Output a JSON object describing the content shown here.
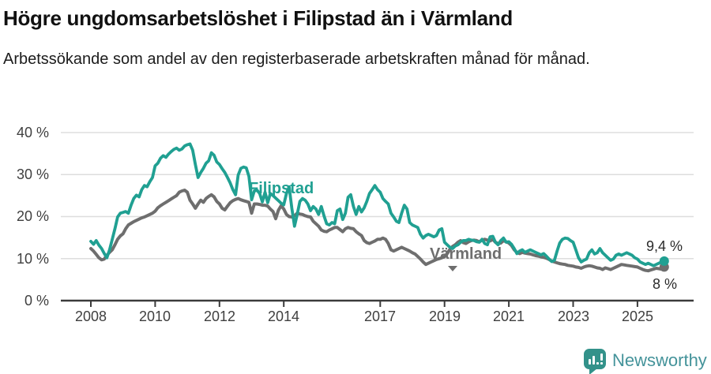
{
  "title": "Högre ungdomsarbetslöshet i Filipstad än i Värmland",
  "subtitle": "Arbetssökande som andel av den registerbaserade arbetskraften månad för månad.",
  "footer": {
    "brand": "Newsworthy"
  },
  "colors": {
    "filipstad": "#20a092",
    "varmland": "#6e6e6e",
    "gridline": "#dddddd",
    "axis": "#3b3b3b",
    "logo_bubble": "#33928a",
    "logo_text": "#44939a"
  },
  "chart_data": {
    "type": "line",
    "title": "Högre ungdomsarbetslöshet i Filipstad än i Värmland",
    "subtitle": "Arbetssökande som andel av den registerbaserade arbetskraften månad för månad.",
    "x_start": "2008-01",
    "x_end": "2025-11",
    "x_frequency": "monthly",
    "x_tick_labels": [
      "2008",
      "2010",
      "2012",
      "2014",
      "2017",
      "2019",
      "2021",
      "2023",
      "2025"
    ],
    "y_tick_labels": [
      "40 %",
      "30 %",
      "20 %",
      "10 %",
      "0 %"
    ],
    "ylim": [
      0,
      40
    ],
    "grid": "horizontal",
    "legend_position": "inline-labels",
    "series": [
      {
        "name": "Filipstad",
        "color": "#20a092",
        "end_label": "9,4 %",
        "end_value": 9.4,
        "values": [
          14.1,
          13.4,
          14.3,
          13.2,
          12.4,
          11.2,
          10.2,
          12.1,
          14.6,
          17.1,
          19.9,
          20.8,
          21.0,
          21.2,
          20.8,
          22.7,
          24.3,
          25.1,
          24.7,
          26.4,
          27.4,
          27.1,
          28.3,
          29.3,
          32.1,
          32.7,
          33.9,
          34.5,
          34.1,
          34.9,
          35.5,
          36.0,
          36.3,
          35.8,
          36.1,
          36.8,
          37.1,
          37.3,
          35.8,
          32.4,
          29.3,
          30.5,
          31.5,
          32.7,
          33.3,
          35.2,
          34.6,
          33.0,
          32.4,
          31.4,
          30.5,
          29.3,
          28.0,
          26.4,
          25.2,
          29.9,
          31.5,
          31.8,
          31.6,
          29.6,
          24.0,
          26.1,
          26.3,
          25.5,
          23.5,
          25.8,
          23.3,
          25.5,
          25.0,
          24.4,
          23.8,
          23.2,
          22.8,
          25.5,
          27.1,
          22.0,
          17.7,
          20.5,
          23.6,
          24.3,
          23.9,
          23.0,
          21.4,
          22.4,
          21.8,
          20.5,
          22.4,
          20.2,
          18.3,
          18.0,
          18.6,
          18.3,
          21.4,
          21.8,
          19.3,
          20.8,
          24.6,
          25.2,
          22.4,
          20.5,
          22.4,
          21.1,
          22.1,
          23.6,
          25.5,
          26.4,
          27.4,
          26.4,
          25.8,
          24.3,
          23.6,
          23.0,
          20.8,
          19.9,
          18.9,
          18.6,
          20.8,
          22.7,
          21.8,
          18.6,
          18.0,
          17.7,
          17.4,
          15.8,
          14.9,
          15.5,
          15.8,
          15.5,
          15.2,
          15.5,
          16.8,
          17.1,
          13.9,
          13.3,
          12.7,
          12.4,
          13.0,
          13.3,
          13.9,
          14.3,
          14.3,
          14.6,
          14.4,
          14.3,
          14.0,
          13.9,
          14.6,
          13.6,
          13.3,
          15.2,
          15.3,
          13.9,
          13.3,
          14.3,
          14.9,
          13.9,
          14.0,
          13.4,
          12.4,
          11.2,
          11.8,
          12.1,
          11.5,
          11.8,
          12.1,
          11.8,
          11.5,
          11.2,
          10.9,
          11.2,
          10.6,
          9.9,
          9.3,
          9.6,
          11.8,
          13.7,
          14.6,
          14.9,
          14.8,
          14.3,
          13.9,
          12.1,
          10.2,
          9.2,
          9.6,
          9.9,
          11.4,
          12.1,
          11.1,
          11.4,
          12.4,
          11.4,
          10.8,
          10.2,
          9.6,
          9.9,
          10.8,
          11.1,
          10.8,
          11.1,
          11.4,
          11.1,
          10.8,
          10.2,
          9.9,
          9.2,
          8.9,
          8.6,
          8.9,
          8.6,
          8.3,
          8.6,
          8.9,
          9.2,
          9.4
        ]
      },
      {
        "name": "Värmland",
        "color": "#6e6e6e",
        "end_label": "8 %",
        "end_value": 8.0,
        "values": [
          12.4,
          11.8,
          11.0,
          10.2,
          9.7,
          9.9,
          10.8,
          11.5,
          12.1,
          13.3,
          14.6,
          15.4,
          15.9,
          17.1,
          18.0,
          18.4,
          18.8,
          19.1,
          19.4,
          19.7,
          19.9,
          20.2,
          20.5,
          20.8,
          21.3,
          22.1,
          22.6,
          23.0,
          23.4,
          23.8,
          24.2,
          24.6,
          25.0,
          25.8,
          26.1,
          26.3,
          25.8,
          23.9,
          23.0,
          22.0,
          23.0,
          23.9,
          23.4,
          24.3,
          24.8,
          25.2,
          24.7,
          23.6,
          23.0,
          22.0,
          21.6,
          22.5,
          23.3,
          23.8,
          24.1,
          24.3,
          24.0,
          23.8,
          23.6,
          23.4,
          20.8,
          23.0,
          23.0,
          22.9,
          22.7,
          22.7,
          22.5,
          21.8,
          21.2,
          19.5,
          21.5,
          22.6,
          21.8,
          20.5,
          20.0,
          19.9,
          20.2,
          20.8,
          20.6,
          20.5,
          20.2,
          20.0,
          19.9,
          18.9,
          18.3,
          17.7,
          16.8,
          16.5,
          16.4,
          16.8,
          17.1,
          17.4,
          17.4,
          16.9,
          16.4,
          17.1,
          17.4,
          17.2,
          17.1,
          16.4,
          15.9,
          15.5,
          14.3,
          13.8,
          13.6,
          13.9,
          14.2,
          14.6,
          14.6,
          14.9,
          14.6,
          13.6,
          12.1,
          11.8,
          12.1,
          12.4,
          12.7,
          12.4,
          12.1,
          11.8,
          11.4,
          11.1,
          10.5,
          9.9,
          9.2,
          8.6,
          8.9,
          9.2,
          9.5,
          9.8,
          10.0,
          10.2,
          10.5,
          11.2,
          12.2,
          12.9,
          13.3,
          13.9,
          14.3,
          13.8,
          13.6,
          14.0,
          14.3,
          14.4,
          14.3,
          14.0,
          14.4,
          14.6,
          14.4,
          14.2,
          14.6,
          13.9,
          13.6,
          13.7,
          14.3,
          14.0,
          13.7,
          13.1,
          12.1,
          11.5,
          11.2,
          11.5,
          11.3,
          11.2,
          11.1,
          10.9,
          10.7,
          10.6,
          10.4,
          10.3,
          10.1,
          9.8,
          9.4,
          9.2,
          9.0,
          8.8,
          8.7,
          8.6,
          8.4,
          8.3,
          8.2,
          8.0,
          7.9,
          7.7,
          8.0,
          8.2,
          8.3,
          8.2,
          8.0,
          7.8,
          7.7,
          7.4,
          7.8,
          7.6,
          7.4,
          7.7,
          8.0,
          8.3,
          8.6,
          8.5,
          8.4,
          8.3,
          8.2,
          8.1,
          8.0,
          7.7,
          7.4,
          7.2,
          7.1,
          7.3,
          7.5,
          7.7,
          7.6,
          7.5,
          8.0
        ]
      }
    ]
  }
}
